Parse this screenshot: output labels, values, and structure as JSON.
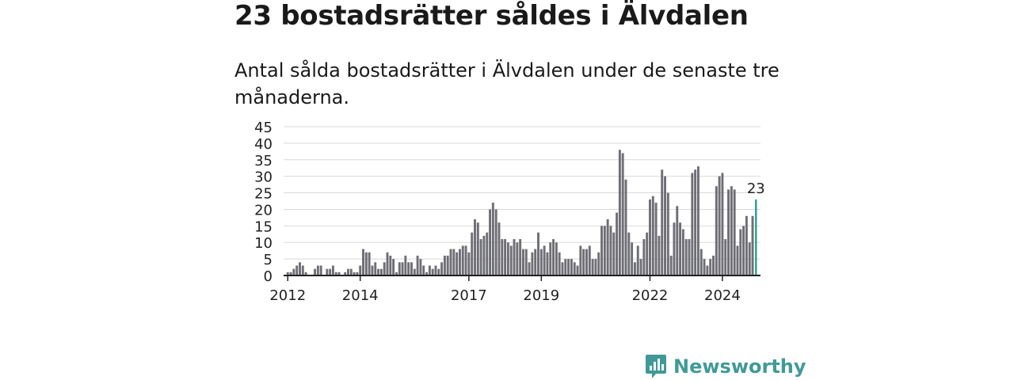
{
  "headline": "23 bostadsrätter såldes i Älvdalen",
  "subtitle": "Antal sålda bostadsrätter i Älvdalen under de senaste tre månaderna.",
  "brand": "Newsworthy",
  "colors": {
    "bar": "#6e6e75",
    "highlight": "#2a9d96",
    "grid": "#d9d9d9",
    "brand": "#3f9a97"
  },
  "chart_data": {
    "type": "bar",
    "start": "2012-01",
    "frequency": "monthly",
    "ylim": [
      0,
      45
    ],
    "yticks": [
      0,
      5,
      10,
      15,
      20,
      25,
      30,
      35,
      40,
      45
    ],
    "xticks": [
      {
        "label": "2012",
        "month": "2012-01"
      },
      {
        "label": "2014",
        "month": "2014-01"
      },
      {
        "label": "2017",
        "month": "2017-01"
      },
      {
        "label": "2019",
        "month": "2019-01"
      },
      {
        "label": "2022",
        "month": "2022-01"
      },
      {
        "label": "2024",
        "month": "2024-01"
      }
    ],
    "values": [
      1,
      1,
      2,
      3,
      4,
      3,
      1,
      0,
      0,
      2,
      3,
      3,
      0,
      2,
      2,
      3,
      1,
      1,
      0,
      1,
      2,
      2,
      1,
      1,
      3,
      8,
      7,
      7,
      3,
      4,
      2,
      2,
      4,
      7,
      6,
      5,
      1,
      4,
      4,
      6,
      4,
      4,
      2,
      6,
      5,
      3,
      1,
      3,
      2,
      3,
      2,
      4,
      6,
      6,
      8,
      8,
      7,
      8,
      9,
      9,
      7,
      13,
      17,
      16,
      11,
      12,
      13,
      20,
      22,
      20,
      16,
      11,
      11,
      10,
      9,
      11,
      10,
      11,
      8,
      8,
      4,
      7,
      8,
      13,
      8,
      9,
      7,
      10,
      11,
      10,
      7,
      4,
      5,
      5,
      5,
      4,
      3,
      9,
      8,
      8,
      9,
      5,
      5,
      7,
      15,
      15,
      17,
      15,
      13,
      19,
      38,
      37,
      29,
      13,
      10,
      4,
      9,
      5,
      11,
      13,
      23,
      24,
      22,
      12,
      32,
      30,
      25,
      6,
      16,
      21,
      16,
      14,
      11,
      11,
      31,
      32,
      33,
      8,
      5,
      3,
      5,
      6,
      27,
      30,
      31,
      11,
      26,
      27,
      26,
      9,
      14,
      15,
      18,
      10,
      18,
      23
    ],
    "highlight_value": 23,
    "highlight_label": "23"
  }
}
